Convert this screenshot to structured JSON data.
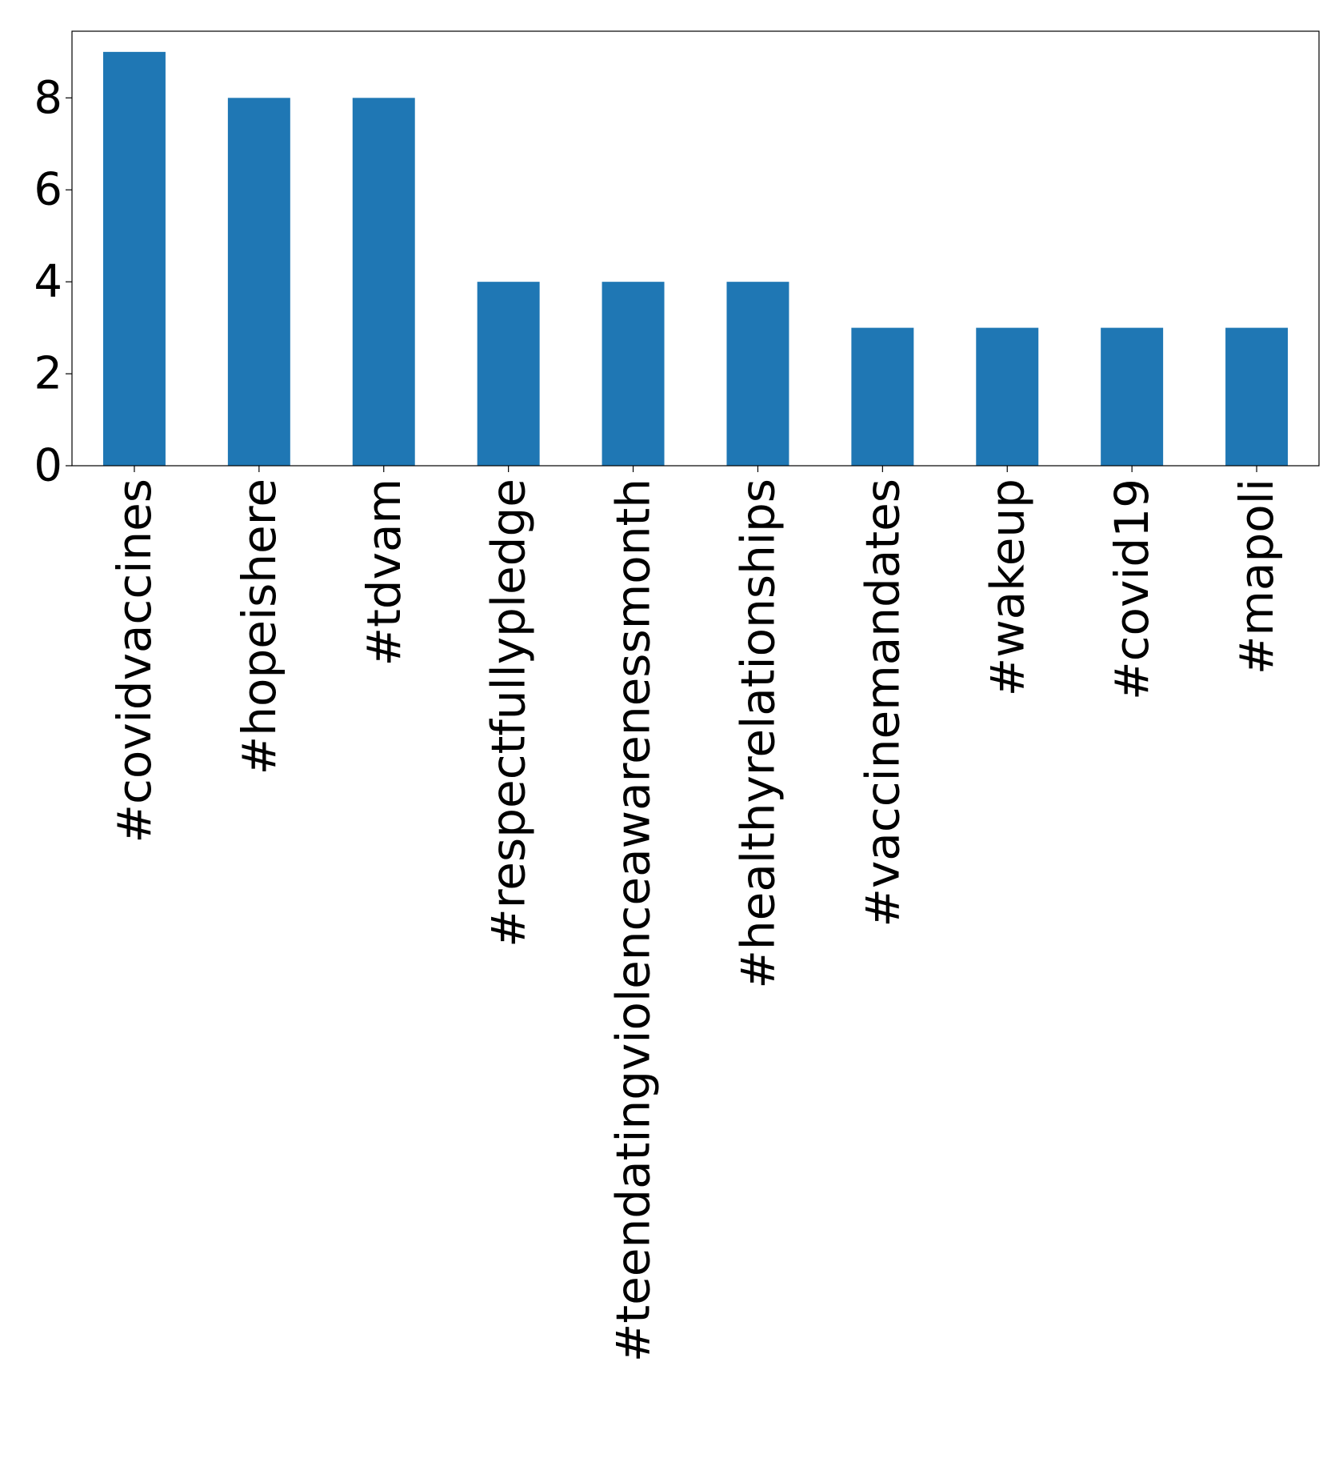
{
  "chart_data": {
    "type": "bar",
    "title": "",
    "xlabel": "",
    "ylabel": "",
    "categories": [
      "#covidvaccines",
      "#hopeishere",
      "#tdvam",
      "#respectfullypledge",
      "#teendatingviolenceawarenessmonth",
      "#healthyrelationships",
      "#vaccinemandates",
      "#wakeup",
      "#covid19",
      "#mapoli"
    ],
    "values": [
      9,
      8,
      8,
      4,
      4,
      4,
      3,
      3,
      3,
      3
    ],
    "ylim": [
      0,
      9.45
    ],
    "yticks": [
      0,
      2,
      4,
      6,
      8
    ],
    "bar_color": "#1f77b4",
    "grid": false,
    "legend": false
  }
}
